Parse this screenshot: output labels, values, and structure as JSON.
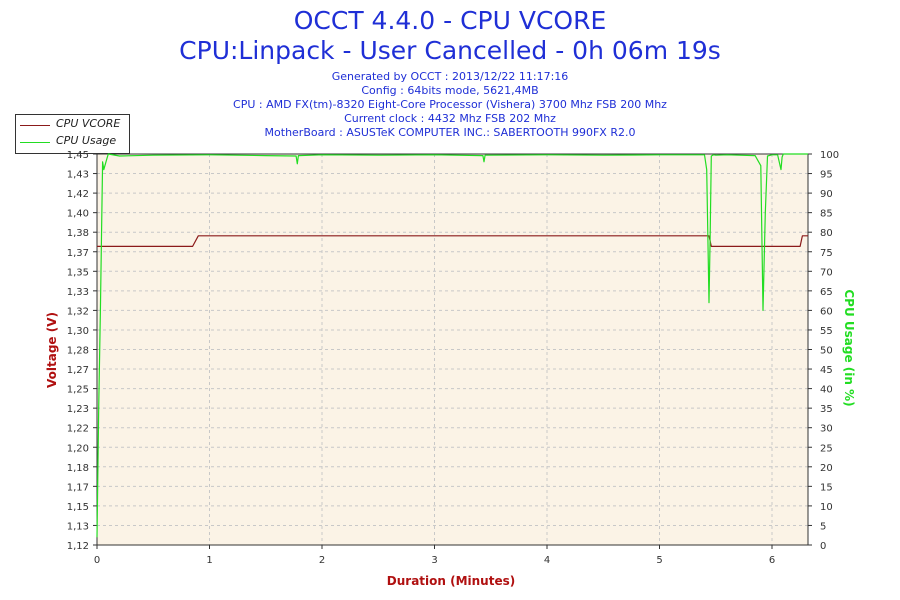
{
  "header": {
    "title_line1": "OCCT 4.4.0 - CPU VCORE",
    "title_line2": "CPU:Linpack - User Cancelled - 0h 06m 19s",
    "info": [
      "Generated by OCCT : 2013/12/22 11:17:16",
      "Config : 64bits mode, 5621,4MB",
      "CPU : AMD FX(tm)-8320 Eight-Core Processor (Vishera) 3700 Mhz FSB 200 Mhz",
      "Current clock : 4432 Mhz FSB 202 Mhz",
      "MotherBoard : ASUSTeK COMPUTER INC.: SABERTOOTH 990FX R2.0"
    ]
  },
  "legend": {
    "items": [
      {
        "label": "CPU VCORE",
        "color": "#8b1a1a"
      },
      {
        "label": "CPU Usage",
        "color": "#22dd22"
      }
    ]
  },
  "chart_data": {
    "type": "line",
    "xlabel": "Duration (Minutes)",
    "ylabel": "Voltage (V)",
    "y2label": "CPU Usage (in %)",
    "xlim": [
      0,
      6.32
    ],
    "ylim": [
      1.12,
      1.45
    ],
    "y2lim": [
      0,
      100
    ],
    "x_ticks": [
      "0",
      "1",
      "2",
      "3",
      "4",
      "5",
      "6"
    ],
    "y_ticks": [
      "1,12",
      "1,13",
      "1,15",
      "1,17",
      "1,18",
      "1,20",
      "1,22",
      "1,23",
      "1,25",
      "1,27",
      "1,28",
      "1,30",
      "1,32",
      "1,33",
      "1,35",
      "1,37",
      "1,38",
      "1,40",
      "1,42",
      "1,43",
      "1,45"
    ],
    "y2_ticks": [
      "0",
      "5",
      "10",
      "15",
      "20",
      "25",
      "30",
      "35",
      "40",
      "45",
      "50",
      "55",
      "60",
      "65",
      "70",
      "75",
      "80",
      "85",
      "90",
      "95",
      "100"
    ],
    "grid": true,
    "legend_position": "top-left",
    "series": [
      {
        "name": "CPU VCORE",
        "axis": "left",
        "color": "#8b1a1a",
        "x": [
          0,
          0.85,
          0.9,
          5.44,
          5.46,
          6.25,
          6.27,
          6.32
        ],
        "y": [
          1.372,
          1.372,
          1.381,
          1.381,
          1.372,
          1.372,
          1.381,
          1.381
        ]
      },
      {
        "name": "CPU Usage",
        "axis": "right",
        "color": "#22dd22",
        "x": [
          0,
          0.015,
          0.03,
          0.05,
          0.06,
          0.09,
          0.1,
          0.2,
          0.5,
          1.0,
          1.5,
          1.77,
          1.78,
          1.79,
          2.0,
          2.5,
          3.0,
          3.43,
          3.44,
          3.45,
          4.0,
          4.5,
          5.0,
          5.4,
          5.42,
          5.44,
          5.45,
          5.46,
          5.48,
          5.5,
          5.6,
          5.85,
          5.9,
          5.92,
          5.94,
          5.96,
          6.0,
          6.05,
          6.08,
          6.09,
          6.1,
          6.2,
          6.32
        ],
        "y": [
          2,
          35,
          60,
          98,
          96,
          99,
          100,
          99.5,
          99.7,
          99.8,
          99.6,
          99.5,
          97.5,
          99.6,
          99.8,
          99.7,
          99.8,
          99.6,
          98,
          99.7,
          99.8,
          99.7,
          99.8,
          99.8,
          96,
          62,
          78,
          99.5,
          99.8,
          99.7,
          99.8,
          99.6,
          97,
          60,
          85,
          99.5,
          99.8,
          99.8,
          96,
          99.2,
          100,
          100,
          100
        ]
      }
    ]
  }
}
